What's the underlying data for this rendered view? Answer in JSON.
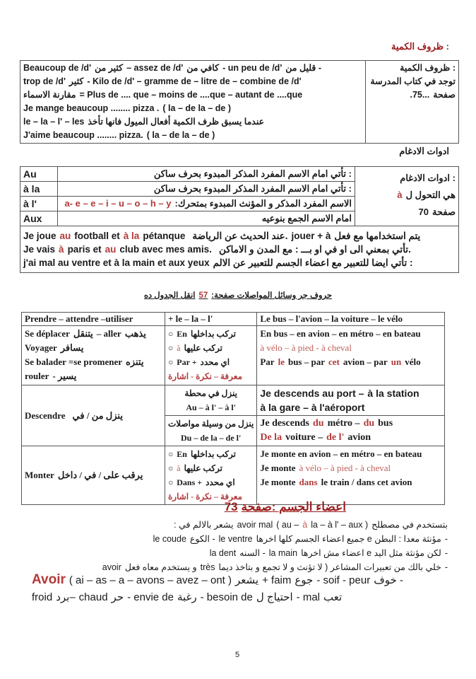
{
  "colors": {
    "accent_red": "#b23a3a",
    "heading_red": "#9b1c1c",
    "text": "#1a1a1a"
  },
  "section1": {
    "heading": "ظروف الكمية :",
    "table": {
      "side": [
        [
          {
            "t": "ظروف الكمية :"
          }
        ],
        [
          {
            "t": "توجد في كتاب المدرسة"
          }
        ],
        [
          {
            "t": ".75..."
          },
          {
            "t": "صفحة"
          }
        ]
      ],
      "lines": [
        [
          {
            "t": "Beaucoup de /d'"
          },
          {
            "t": "كثير من"
          },
          {
            "t": "– assez de /d'"
          },
          {
            "t": "كافي من"
          },
          {
            "t": "- un peu de /d'"
          },
          {
            "t": "قليل من -"
          }
        ],
        [
          {
            "t": "trop de /d'"
          },
          {
            "t": "كثير"
          },
          {
            "t": "- Kilo de /d' – gramme de – litre de – combine de /d'"
          }
        ],
        [
          {
            "t": "مقارنة الاسماء"
          },
          {
            "t": "= Plus de .... que – moins de ....que – autant de ....que"
          }
        ],
        [
          {
            "t": "Je mange beaucoup ........ pizza ."
          },
          {
            "t": "( la – de la – de )"
          }
        ],
        [
          {
            "t": "le – la – l' – les"
          },
          {
            "t": "عندما يسبق ظرف الكمية أفعال الميول فانها تأخذ"
          }
        ],
        [
          {
            "t": "J'aime beaucoup ........ pizza."
          },
          {
            "t": "( la – de la – de )"
          }
        ]
      ]
    }
  },
  "section2": {
    "heading": "ادوات الادغام",
    "side": [
      [
        {
          "t": "ادوات الادغام :"
        }
      ],
      [
        {
          "t": "à",
          "c": "red"
        },
        {
          "t": "هي التحول ل"
        }
      ],
      [
        {
          "t": "70"
        },
        {
          "t": "صفحة"
        }
      ]
    ],
    "rows": [
      {
        "article": "Au",
        "rule": [
          {
            "t": "تأتي امام الاسم المفرد المذكر المبدوء بحرف ساكن :"
          }
        ]
      },
      {
        "article": "à la",
        "rule": [
          {
            "t": "تأتي امام الاسم المفرد المذكر المبدوء بحرف ساكن :"
          }
        ]
      },
      {
        "article": "à l'",
        "rule": [
          {
            "t": "a- e – e – i – u – o – h – y",
            "c": "red"
          },
          {
            "t": ":الاسم المفرد المذكر و المؤنث المبدوء بمتحرك"
          }
        ]
      },
      {
        "article": "Aux",
        "rule": [
          {
            "t": "امام الاسم الجمع بنوعيه"
          }
        ]
      }
    ],
    "examples": [
      [
        {
          "t": "Je joue"
        },
        {
          "t": "au",
          "c": "red"
        },
        {
          "t": "football et"
        },
        {
          "t": "à la",
          "c": "red"
        },
        {
          "t": "pétanque"
        },
        {
          "t": "         "
        },
        {
          "t": "عند الحديث عن الرياضة."
        },
        {
          "t": "jouer + à"
        },
        {
          "t": "يتم استخدامها مع فعل"
        }
      ],
      [
        {
          "t": " "
        }
      ],
      [
        {
          "t": "Je vais"
        },
        {
          "t": "à",
          "c": "red"
        },
        {
          "t": "paris et"
        },
        {
          "t": "au",
          "c": "red"
        },
        {
          "t": "club avec mes amis."
        },
        {
          "t": "        "
        },
        {
          "t": "تأتي بمعني الى او في او بـــ : مع المدن و الاماكن."
        }
      ],
      [
        {
          "t": "j'ai mal au ventre et à la main et aux yeux"
        },
        {
          "t": "تأتي ايضا للتعبير مع اعضاء الجسم للتعبير عن الالم :"
        }
      ]
    ]
  },
  "section3": {
    "caption": [
      {
        "t": "انقل الجدول ده"
      },
      {
        "t": "57",
        "c": "red"
      },
      {
        "t": ":حروف جر وسائل المواصلات صفحة"
      }
    ],
    "header": [
      "Prendre – attendre –utiliser",
      "+ le – la – l'",
      "Le bus – l'avion – la voiture – le vélo"
    ],
    "row1": {
      "verbs": [
        [
          {
            "t": "Se déplacer"
          },
          {
            "t": "يتنقل"
          },
          {
            "t": "– aller"
          },
          {
            "t": "يذهب"
          }
        ],
        [
          {
            "t": "Voyager"
          },
          {
            "t": "يسافر"
          }
        ],
        [
          {
            "t": "Se balader =se promener"
          },
          {
            "t": "يتنزه"
          }
        ],
        [
          {
            "t": "rouler"
          },
          {
            "t": "- يسير"
          }
        ]
      ],
      "preps": [
        [
          {
            "t": "○"
          },
          {
            "t": "En"
          },
          {
            "t": "تركب بداخلها"
          }
        ],
        [
          {
            "t": "○"
          },
          {
            "t": "à",
            "c": "lred"
          },
          {
            "t": "تركب عليها"
          }
        ],
        [
          {
            "t": "○"
          },
          {
            "t": "Par +"
          },
          {
            "t": "اي محدد"
          }
        ],
        [
          {
            "t": "معرفة – نكرة - اشارة",
            "c": "red"
          }
        ]
      ],
      "examples": [
        [
          {
            "t": "En bus – en avion – en métro – en bateau"
          }
        ],
        [
          {
            "t": "à vélo – à pied - à cheval",
            "c": "lred"
          }
        ],
        [
          {
            "t": "Par"
          },
          {
            "t": "le",
            "c": "red"
          },
          {
            "t": "bus – par"
          },
          {
            "t": "cet",
            "c": "red"
          },
          {
            "t": "avion – par"
          },
          {
            "t": "un",
            "c": "red"
          },
          {
            "t": "vélo"
          }
        ]
      ]
    },
    "row2": {
      "verb": [
        {
          "t": "Descendre"
        },
        {
          "t": "      "
        },
        {
          "t": "ينزل من / في"
        }
      ],
      "prep_top": [
        [
          {
            "t": "ينزل في محطة"
          }
        ],
        [
          {
            "t": "Au – à l' – à l'"
          }
        ]
      ],
      "prep_bottom": [
        [
          {
            "t": "ينزل من وسيلة مواصلات"
          }
        ],
        [
          {
            "t": "Du – de la – de l'"
          }
        ]
      ],
      "ex_top": [
        [
          {
            "t": "Je descends au port –"
          },
          {
            "t": "à la station"
          }
        ],
        [
          {
            "t": "à la gare – à l'aéroport"
          }
        ]
      ],
      "ex_bottom": [
        [
          {
            "t": "Je descends"
          },
          {
            "t": "du",
            "c": "red"
          },
          {
            "t": "métro –"
          },
          {
            "t": "du",
            "c": "red"
          },
          {
            "t": "bus"
          }
        ],
        [
          {
            "t": "De la",
            "c": "red"
          },
          {
            "t": "voiture –"
          },
          {
            "t": "de l'",
            "c": "red"
          },
          {
            "t": "avion"
          }
        ]
      ]
    },
    "row3": {
      "verb": [
        {
          "t": "Monter"
        },
        {
          "t": "يرقب على / في / داخل"
        }
      ],
      "preps": [
        [
          {
            "t": "○"
          },
          {
            "t": "En"
          },
          {
            "t": "تركب بداخلها"
          }
        ],
        [
          {
            "t": "○"
          },
          {
            "t": "à",
            "c": "lred"
          },
          {
            "t": "تركب عليها"
          }
        ],
        [
          {
            "t": "○"
          },
          {
            "t": "Dans +"
          },
          {
            "t": "اي محدد"
          }
        ],
        [
          {
            "t": "معرفة – نكرة - اشارة",
            "c": "red"
          }
        ]
      ],
      "examples": [
        [
          {
            "t": "Je monte en avion – en métro – en bateau"
          }
        ],
        [
          {
            "t": "Je monte"
          },
          {
            "t": "à vélo – à pied - à cheval",
            "c": "lred"
          }
        ],
        [
          {
            "t": "Je monte"
          },
          {
            "t": "dans",
            "c": "red"
          },
          {
            "t": "le train / dans cet avion"
          }
        ]
      ]
    }
  },
  "section4": {
    "title": [
      {
        "t": "73"
      },
      {
        "t": "اعضاء الجسم :صفحة"
      }
    ],
    "lines": [
      [
        {
          "t": ": يشعر بالالم في"
        },
        {
          "t": "avoir mal"
        },
        {
          "t": "( au –"
        },
        {
          "t": "à",
          "c": "lred"
        },
        {
          "t": "la – à l' – aux )"
        },
        {
          "t": "بتستخدم في مصطلح"
        }
      ],
      [
        {
          "t": "le coude"
        },
        {
          "t": "الكوع -"
        },
        {
          "t": "le ventre"
        },
        {
          "t": "جميع اعضاء الجسم كلها اخرها e مؤنثة معدا : البطن"
        },
        {
          "t": "-"
        }
      ],
      [
        {
          "t": "la dent"
        },
        {
          "t": "السنه -"
        },
        {
          "t": "la main"
        },
        {
          "t": "اعضاء مش اخرها e لكن مؤنثة مثل اليد"
        },
        {
          "t": "-"
        }
      ],
      [
        {
          "t": "avoir"
        },
        {
          "t": "و يستخدم معاه فعل"
        },
        {
          "t": "très"
        },
        {
          "t": "خلي بالك من تعبيرات المشاعر ( لا تؤنث و لا تجمع و بتاخذ ديما"
        },
        {
          "t": "-"
        }
      ]
    ],
    "avoir": [
      {
        "t": "Avoir",
        "c": "big"
      },
      {
        "t": "( ai – as – a – avons – avez – ont )"
      },
      {
        "t": "يشعر"
      },
      {
        "t": "+ faim"
      },
      {
        "t": "جوع"
      },
      {
        "t": "- soif - peur"
      },
      {
        "t": "خوف -"
      }
    ],
    "feelings": [
      {
        "t": "froid"
      },
      {
        "t": "برد–"
      },
      {
        "t": "chaud"
      },
      {
        "t": "حر"
      },
      {
        "t": "- envie de"
      },
      {
        "t": "رغبة"
      },
      {
        "t": "- besoin de"
      },
      {
        "t": "احتياج ل"
      },
      {
        "t": "- mal"
      },
      {
        "t": "تعب"
      }
    ]
  },
  "footer": {
    "page_number": "5"
  }
}
